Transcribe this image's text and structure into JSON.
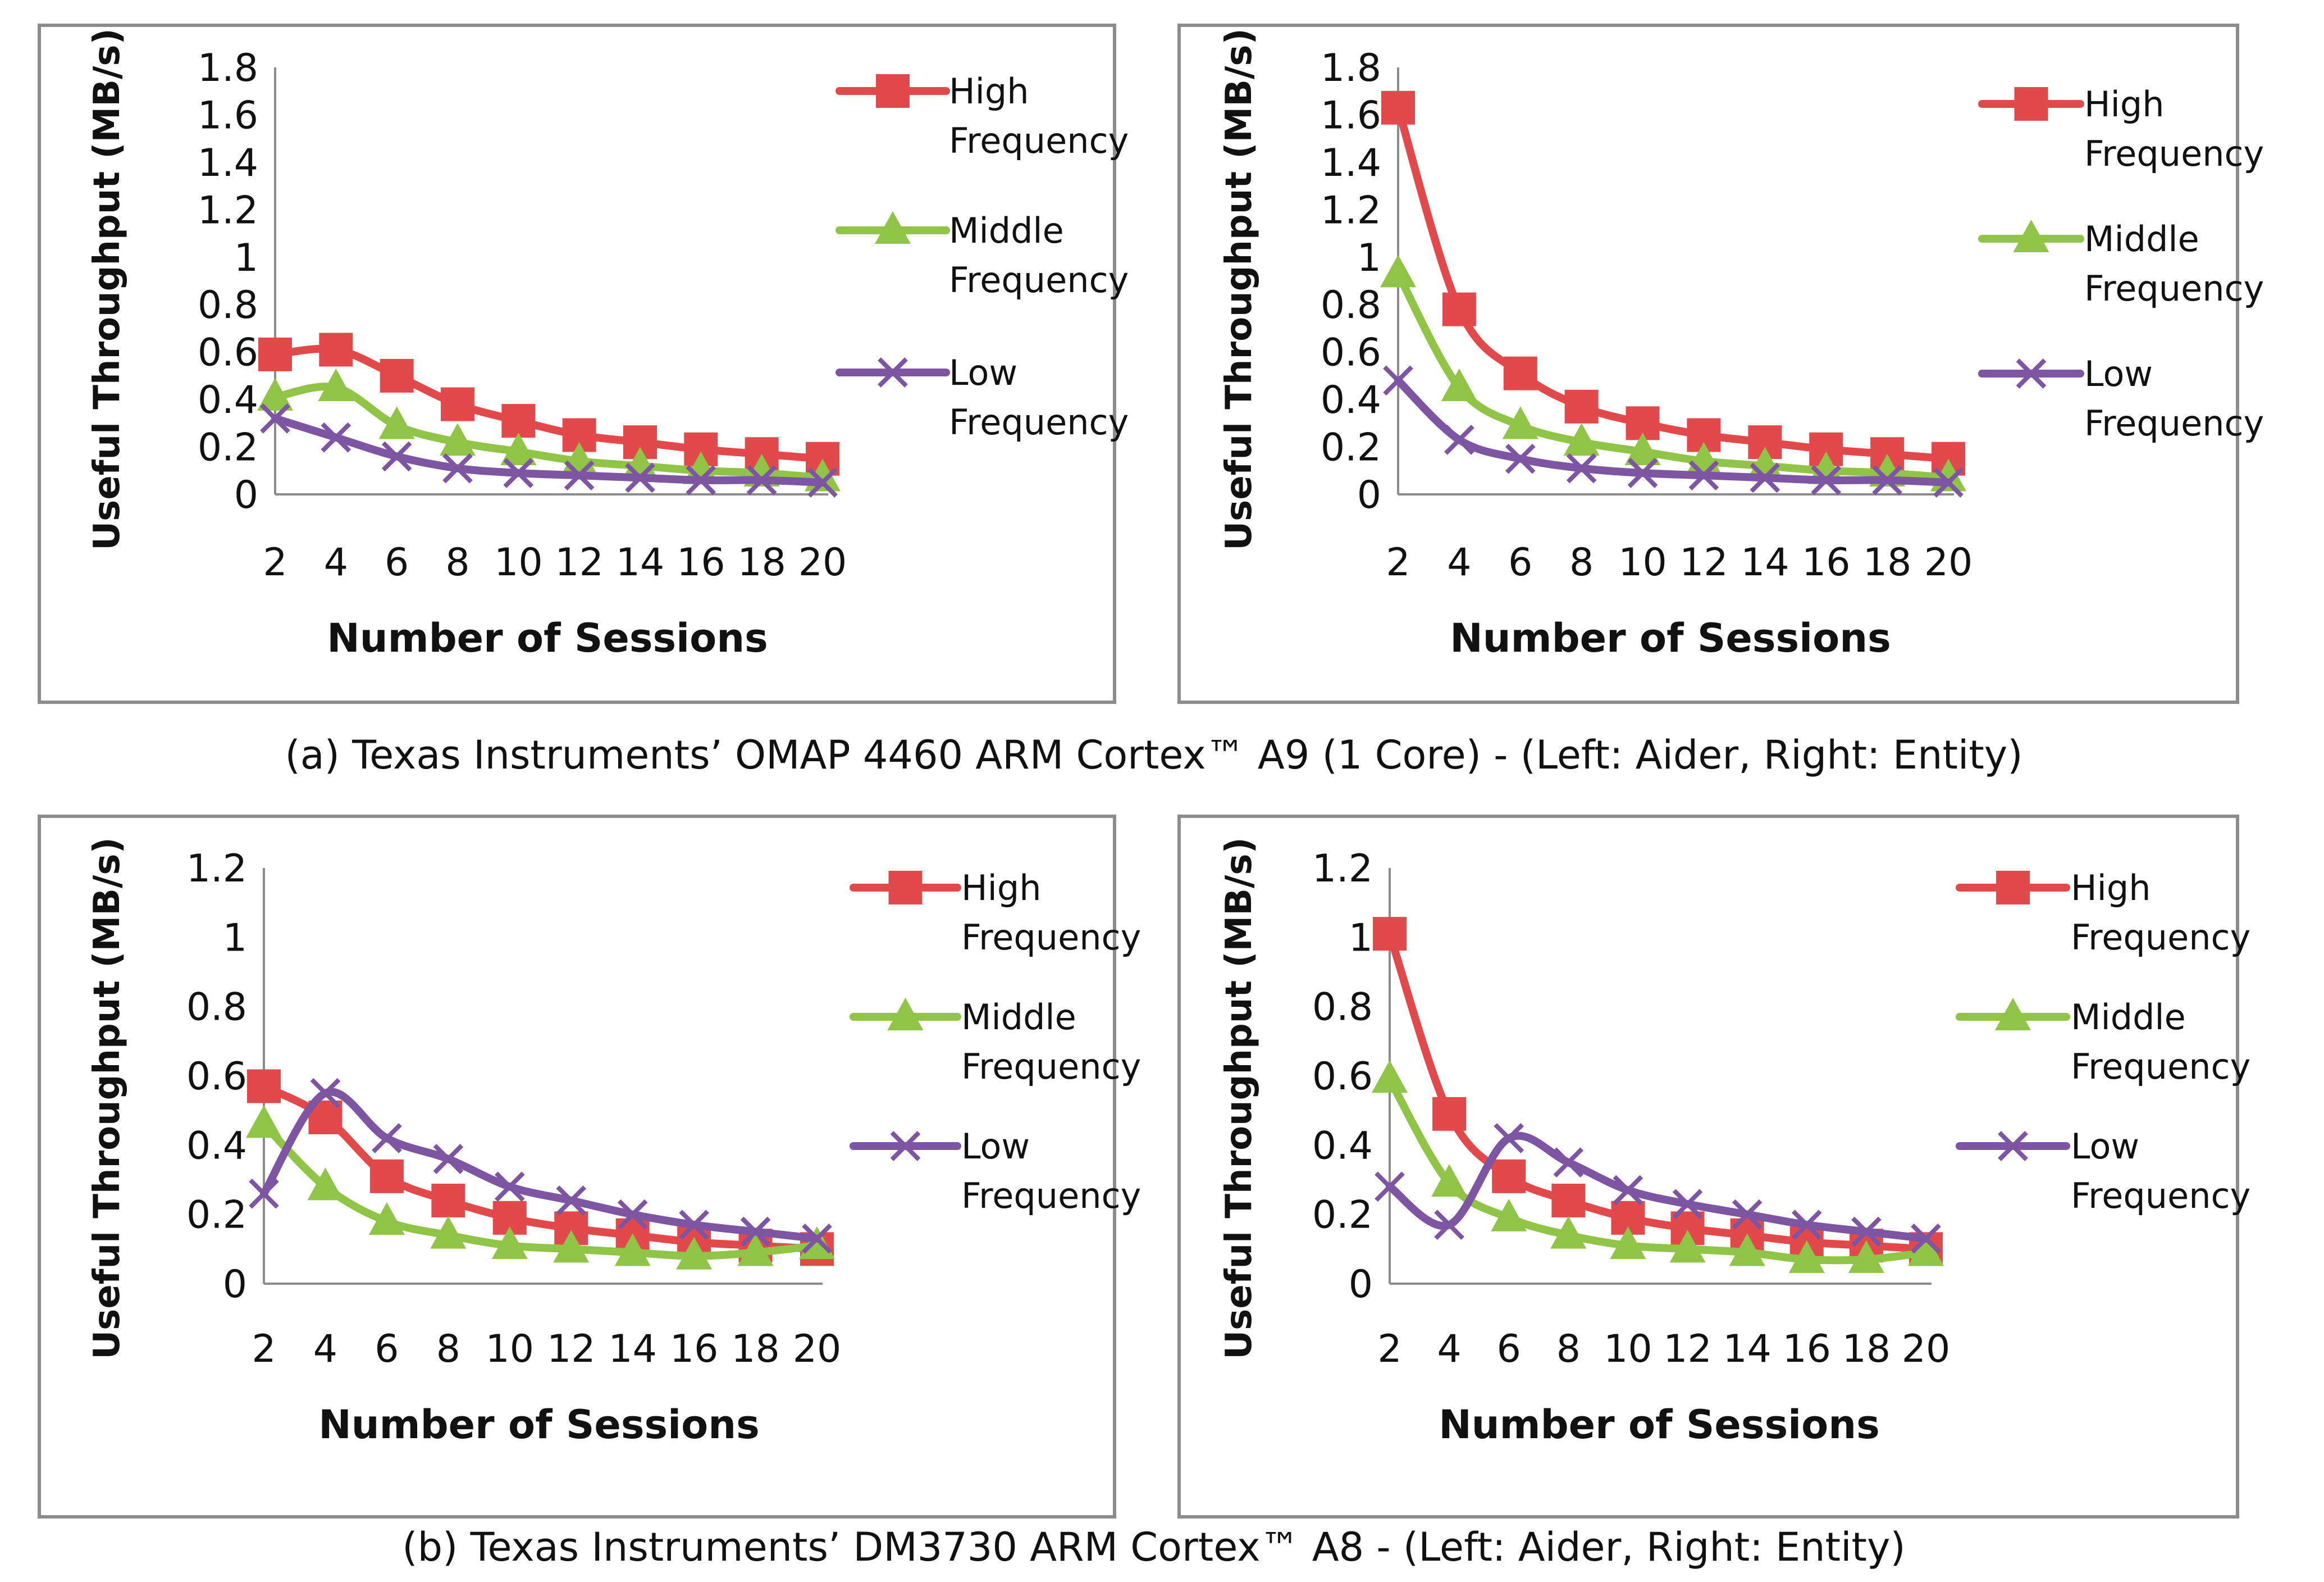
{
  "chart_data": [
    {
      "type": "line",
      "title": "",
      "xlabel": "Number of Sessions",
      "ylabel": "Useful Throughput (MB/s)",
      "x": [
        2,
        4,
        6,
        8,
        10,
        12,
        14,
        16,
        18,
        20
      ],
      "x_tick_labels": [
        "2",
        "4",
        "6",
        "8",
        "10",
        "12",
        "14",
        "16",
        "18",
        "20"
      ],
      "ylim": [
        0,
        1.8
      ],
      "y_ticks": [
        0,
        0.2,
        0.4,
        0.6,
        0.8,
        1,
        1.2,
        1.4,
        1.6,
        1.8
      ],
      "y_tick_labels": [
        "0",
        "0.2",
        "0.4",
        "0.6",
        "0.8",
        "1",
        "1.2",
        "1.4",
        "1.6",
        "1.8"
      ],
      "legend_position": "right",
      "series": [
        {
          "name": "High Frequency",
          "legend_lines": [
            "High",
            "Frequency"
          ],
          "color": "#e2494b",
          "marker": "square",
          "values": [
            0.59,
            0.61,
            0.5,
            0.38,
            0.31,
            0.25,
            0.22,
            0.19,
            0.17,
            0.15
          ]
        },
        {
          "name": "Middle Frequency",
          "legend_lines": [
            "Middle",
            "Frequency"
          ],
          "color": "#8fc446",
          "marker": "triangle",
          "values": [
            0.41,
            0.45,
            0.29,
            0.22,
            0.18,
            0.14,
            0.12,
            0.1,
            0.09,
            0.07
          ]
        },
        {
          "name": "Low Frequency",
          "legend_lines": [
            "Low",
            "Frequency"
          ],
          "color": "#7d55a3",
          "marker": "x",
          "values": [
            0.32,
            0.24,
            0.16,
            0.11,
            0.09,
            0.08,
            0.07,
            0.06,
            0.06,
            0.05
          ]
        }
      ]
    },
    {
      "type": "line",
      "title": "",
      "xlabel": "Number of Sessions",
      "ylabel": "Useful Throughput (MB/s)",
      "x": [
        2,
        4,
        6,
        8,
        10,
        12,
        14,
        16,
        18,
        20
      ],
      "x_tick_labels": [
        "2",
        "4",
        "6",
        "8",
        "10",
        "12",
        "14",
        "16",
        "18",
        "20"
      ],
      "ylim": [
        0,
        1.8
      ],
      "y_ticks": [
        0,
        0.2,
        0.4,
        0.6,
        0.8,
        1,
        1.2,
        1.4,
        1.6,
        1.8
      ],
      "y_tick_labels": [
        "0",
        "0.2",
        "0.4",
        "0.6",
        "0.8",
        "1",
        "1.2",
        "1.4",
        "1.6",
        "1.8"
      ],
      "legend_position": "right",
      "series": [
        {
          "name": "High Frequency",
          "legend_lines": [
            "High",
            "Frequency"
          ],
          "color": "#e2494b",
          "marker": "square",
          "values": [
            1.63,
            0.78,
            0.51,
            0.37,
            0.3,
            0.25,
            0.22,
            0.19,
            0.17,
            0.15
          ]
        },
        {
          "name": "Middle Frequency",
          "legend_lines": [
            "Middle",
            "Frequency"
          ],
          "color": "#8fc446",
          "marker": "triangle",
          "values": [
            0.93,
            0.45,
            0.29,
            0.22,
            0.18,
            0.14,
            0.12,
            0.1,
            0.09,
            0.07
          ]
        },
        {
          "name": "Low Frequency",
          "legend_lines": [
            "Low",
            "Frequency"
          ],
          "color": "#7d55a3",
          "marker": "x",
          "values": [
            0.48,
            0.23,
            0.15,
            0.11,
            0.09,
            0.08,
            0.07,
            0.06,
            0.06,
            0.05
          ]
        }
      ]
    },
    {
      "type": "line",
      "title": "",
      "xlabel": "Number of Sessions",
      "ylabel": "Useful Throughput (MB/s)",
      "x": [
        2,
        4,
        6,
        8,
        10,
        12,
        14,
        16,
        18,
        20
      ],
      "x_tick_labels": [
        "2",
        "4",
        "6",
        "8",
        "10",
        "12",
        "14",
        "16",
        "18",
        "20"
      ],
      "ylim": [
        0,
        1.2
      ],
      "y_ticks": [
        0,
        0.2,
        0.4,
        0.6,
        0.8,
        1,
        1.2
      ],
      "y_tick_labels": [
        "0",
        "0.2",
        "0.4",
        "0.6",
        "0.8",
        "1",
        "1.2"
      ],
      "legend_position": "right",
      "series": [
        {
          "name": "High Frequency",
          "legend_lines": [
            "High",
            "Frequency"
          ],
          "color": "#e2494b",
          "marker": "square",
          "values": [
            0.57,
            0.48,
            0.31,
            0.24,
            0.19,
            0.16,
            0.14,
            0.12,
            0.11,
            0.1
          ]
        },
        {
          "name": "Middle Frequency",
          "legend_lines": [
            "Middle",
            "Frequency"
          ],
          "color": "#8fc446",
          "marker": "triangle",
          "values": [
            0.46,
            0.28,
            0.18,
            0.14,
            0.11,
            0.1,
            0.09,
            0.08,
            0.09,
            0.11
          ]
        },
        {
          "name": "Low Frequency",
          "legend_lines": [
            "Low",
            "Frequency"
          ],
          "color": "#7d55a3",
          "marker": "x",
          "values": [
            0.26,
            0.55,
            0.42,
            0.36,
            0.28,
            0.24,
            0.2,
            0.17,
            0.15,
            0.13
          ]
        }
      ]
    },
    {
      "type": "line",
      "title": "",
      "xlabel": "Number of Sessions",
      "ylabel": "Useful Throughput (MB/s)",
      "x": [
        2,
        4,
        6,
        8,
        10,
        12,
        14,
        16,
        18,
        20
      ],
      "x_tick_labels": [
        "2",
        "4",
        "6",
        "8",
        "10",
        "12",
        "14",
        "16",
        "18",
        "20"
      ],
      "ylim": [
        0,
        1.2
      ],
      "y_ticks": [
        0,
        0.2,
        0.4,
        0.6,
        0.8,
        1,
        1.2
      ],
      "y_tick_labels": [
        "0",
        "0.2",
        "0.4",
        "0.6",
        "0.8",
        "1",
        "1.2"
      ],
      "legend_position": "right",
      "series": [
        {
          "name": "High Frequency",
          "legend_lines": [
            "High",
            "Frequency"
          ],
          "color": "#e2494b",
          "marker": "square",
          "values": [
            1.01,
            0.49,
            0.31,
            0.24,
            0.19,
            0.16,
            0.14,
            0.12,
            0.11,
            0.1
          ]
        },
        {
          "name": "Middle Frequency",
          "legend_lines": [
            "Middle",
            "Frequency"
          ],
          "color": "#8fc446",
          "marker": "triangle",
          "values": [
            0.59,
            0.29,
            0.19,
            0.14,
            0.11,
            0.1,
            0.09,
            0.07,
            0.07,
            0.09
          ]
        },
        {
          "name": "Low Frequency",
          "legend_lines": [
            "Low",
            "Frequency"
          ],
          "color": "#7d55a3",
          "marker": "x",
          "values": [
            0.28,
            0.17,
            0.42,
            0.35,
            0.27,
            0.23,
            0.2,
            0.17,
            0.15,
            0.13
          ]
        }
      ]
    }
  ],
  "captions": {
    "a": "(a) Texas Instruments’ OMAP 4460 ARM Cortex™  A9 (1 Core) - (Left: Aider, Right: Entity)",
    "b": "(b) Texas Instruments’ DM3730 ARM Cortex™  A8 - (Left: Aider, Right: Entity)"
  }
}
